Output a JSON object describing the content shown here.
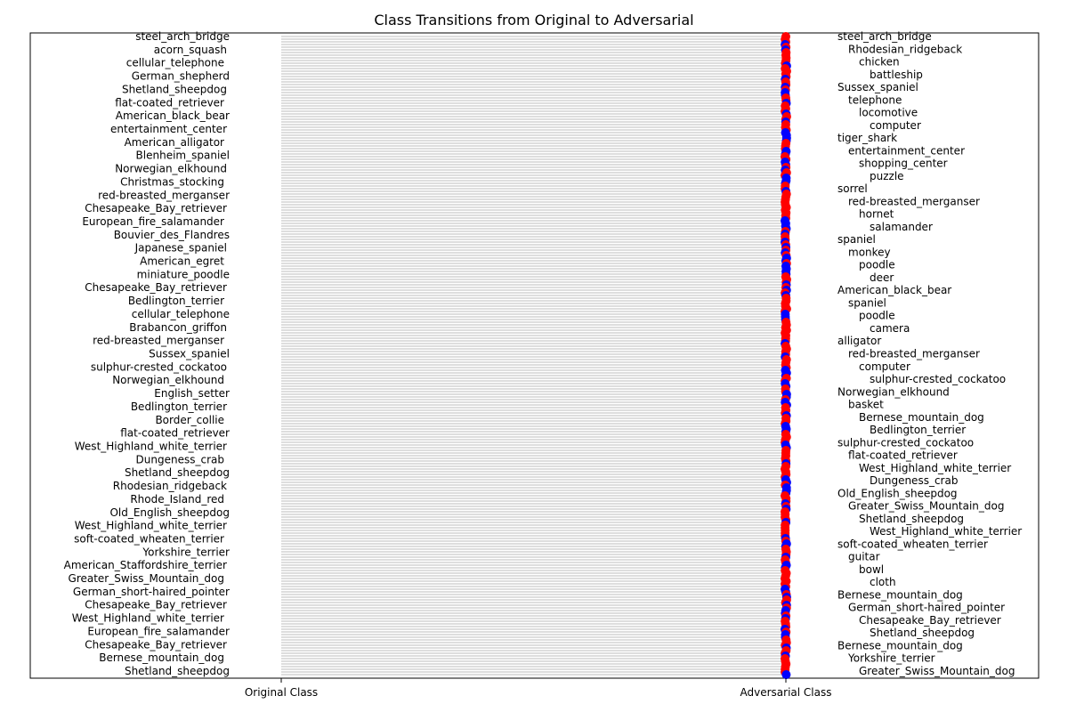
{
  "chart_data": {
    "type": "scatter",
    "title": "Class Transitions from Original to Adversarial",
    "xlabel": "",
    "ylabel": "",
    "x_categories": [
      "Original Class",
      "Adversarial Class"
    ],
    "grid": false,
    "legend": "none",
    "note_values": "dense overlapping label stacks; only legible labels transcribed, order top-to-bottom",
    "original_labels": [
      "steel_arch_bridge",
      "acorn_squash",
      "cellular_telephone",
      "German_shepherd",
      "Shetland_sheepdog",
      "flat-coated_retriever",
      "American_black_bear",
      "entertainment_center",
      "American_alligator",
      "Blenheim_spaniel",
      "Norwegian_elkhound",
      "Christmas_stocking",
      "red-breasted_merganser",
      "Chesapeake_Bay_retriever",
      "European_fire_salamander",
      "Bouvier_des_Flandres",
      "Japanese_spaniel",
      "American_egret",
      "miniature_poodle",
      "Chesapeake_Bay_retriever",
      "Bedlington_terrier",
      "cellular_telephone",
      "Brabancon_griffon",
      "red-breasted_merganser",
      "Sussex_spaniel",
      "sulphur-crested_cockatoo",
      "Norwegian_elkhound",
      "English_setter",
      "Bedlington_terrier",
      "Border_collie",
      "flat-coated_retriever",
      "West_Highland_white_terrier",
      "Dungeness_crab",
      "Shetland_sheepdog",
      "Rhodesian_ridgeback",
      "Rhode_Island_red",
      "Old_English_sheepdog",
      "West_Highland_white_terrier",
      "soft-coated_wheaten_terrier",
      "Yorkshire_terrier",
      "American_Staffordshire_terrier",
      "Greater_Swiss_Mountain_dog",
      "German_short-haired_pointer",
      "Chesapeake_Bay_retriever",
      "West_Highland_white_terrier",
      "European_fire_salamander",
      "Chesapeake_Bay_retriever",
      "Bernese_mountain_dog",
      "Shetland_sheepdog"
    ],
    "adversarial_labels": [
      "steel_arch_bridge",
      "Rhodesian_ridgeback",
      "chicken",
      "battleship",
      "Sussex_spaniel",
      "telephone",
      "locomotive",
      "computer",
      "tiger_shark",
      "entertainment_center",
      "shopping_center",
      "puzzle",
      "sorrel",
      "red-breasted_merganser",
      "hornet",
      "salamander",
      "spaniel",
      "monkey",
      "poodle",
      "deer",
      "American_black_bear",
      "spaniel",
      "poodle",
      "camera",
      "alligator",
      "red-breasted_merganser",
      "computer",
      "sulphur-crested_cockatoo",
      "Norwegian_elkhound",
      "basket",
      "Bernese_mountain_dog",
      "Bedlington_terrier",
      "sulphur-crested_cockatoo",
      "flat-coated_retriever",
      "West_Highland_white_terrier",
      "Dungeness_crab",
      "Old_English_sheepdog",
      "Greater_Swiss_Mountain_dog",
      "Shetland_sheepdog",
      "West_Highland_white_terrier",
      "soft-coated_wheaten_terrier",
      "guitar",
      "bowl",
      "cloth",
      "Bernese_mountain_dog",
      "German_short-haired_pointer",
      "Chesapeake_Bay_retriever",
      "Shetland_sheepdog",
      "Bernese_mountain_dog",
      "Yorkshire_terrier",
      "Greater_Swiss_Mountain_dog"
    ],
    "colors": {
      "line": "#7f7f7f",
      "marker_red": "#ff0000",
      "marker_blue": "#0000ff",
      "axis": "#000000",
      "text": "#000000"
    }
  }
}
